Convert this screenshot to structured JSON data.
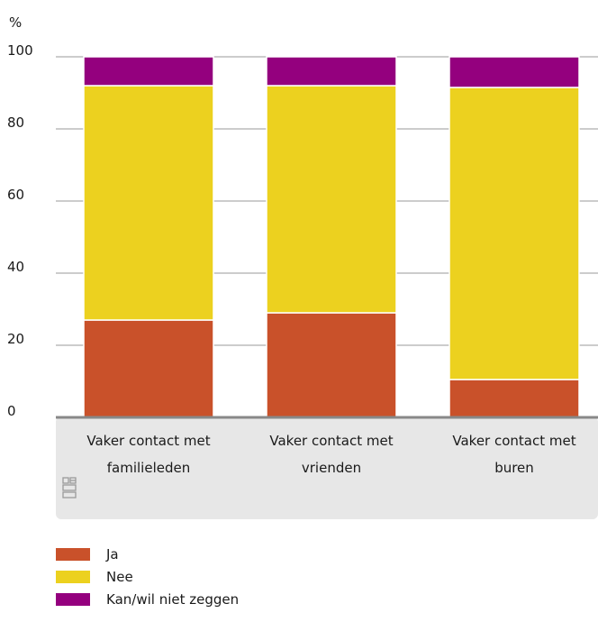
{
  "chart_data": {
    "type": "bar",
    "stacked": true,
    "ylabel": "%",
    "ylim": [
      0,
      100
    ],
    "yticks": [
      0,
      20,
      40,
      60,
      80,
      100
    ],
    "categories": [
      [
        "Vaker  contact met",
        "familieleden"
      ],
      [
        "Vaker contact met",
        "vrienden"
      ],
      [
        "Vaker contact met",
        "buren"
      ]
    ],
    "series": [
      {
        "name": "Ja",
        "color": "#c9512a",
        "values": [
          27,
          29,
          10.5
        ]
      },
      {
        "name": "Nee",
        "color": "#ecd11f",
        "values": [
          65,
          63,
          81
        ]
      },
      {
        "name": "Kan/wil niet zeggen",
        "color": "#94007e",
        "values": [
          8,
          8,
          8.5
        ]
      }
    ],
    "grid": true,
    "legend": "bottom"
  }
}
